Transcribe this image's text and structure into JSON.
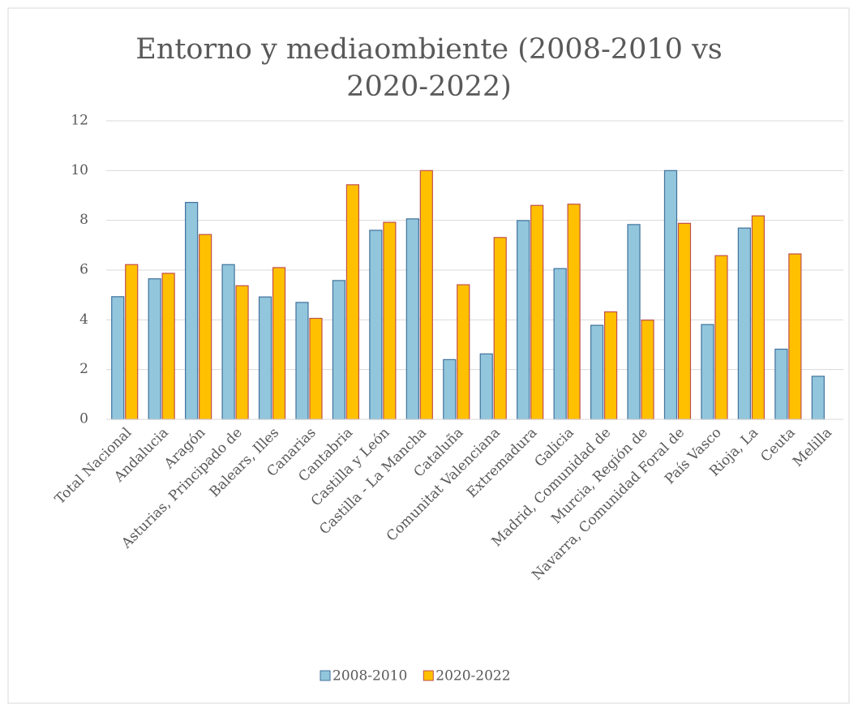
{
  "chart_data": {
    "type": "bar",
    "title": "Entorno y mediaombiente (2008-2010 vs 2020-2022)",
    "categories": [
      "Total Nacional",
      "Andalucia",
      "Aragón",
      "Asturias, Principado de",
      "Balears, Illes",
      "Canarias",
      "Cantabria",
      "Castilla y León",
      "Castilla - La Mancha",
      "Cataluña",
      "Comunitat Valenciana",
      "Extremadura",
      "Galicia",
      "Madrid, Comunidad de",
      "Murcia, Región de",
      "Navarra, Comunidad Foral de",
      "País Vasco",
      "Rioja, La",
      "Ceuta",
      "Melilla"
    ],
    "series": [
      {
        "name": "2008-2010",
        "color": "#92c6dc",
        "values": [
          4.93,
          5.65,
          8.72,
          6.22,
          4.92,
          4.7,
          5.58,
          7.6,
          8.06,
          2.4,
          2.63,
          7.99,
          6.06,
          3.78,
          7.83,
          10.0,
          3.81,
          7.69,
          2.82,
          1.73
        ]
      },
      {
        "name": "2020-2022",
        "color": "#ffc000",
        "values": [
          6.22,
          5.87,
          7.43,
          5.37,
          6.1,
          4.06,
          9.43,
          7.92,
          10.0,
          5.41,
          7.31,
          8.6,
          8.65,
          4.32,
          3.99,
          7.88,
          6.58,
          8.18,
          6.65,
          null
        ]
      }
    ],
    "ylim": [
      0,
      12
    ],
    "yticks": [
      0,
      2,
      4,
      6,
      8,
      10,
      12
    ],
    "grid": true,
    "legend": "bottom"
  }
}
